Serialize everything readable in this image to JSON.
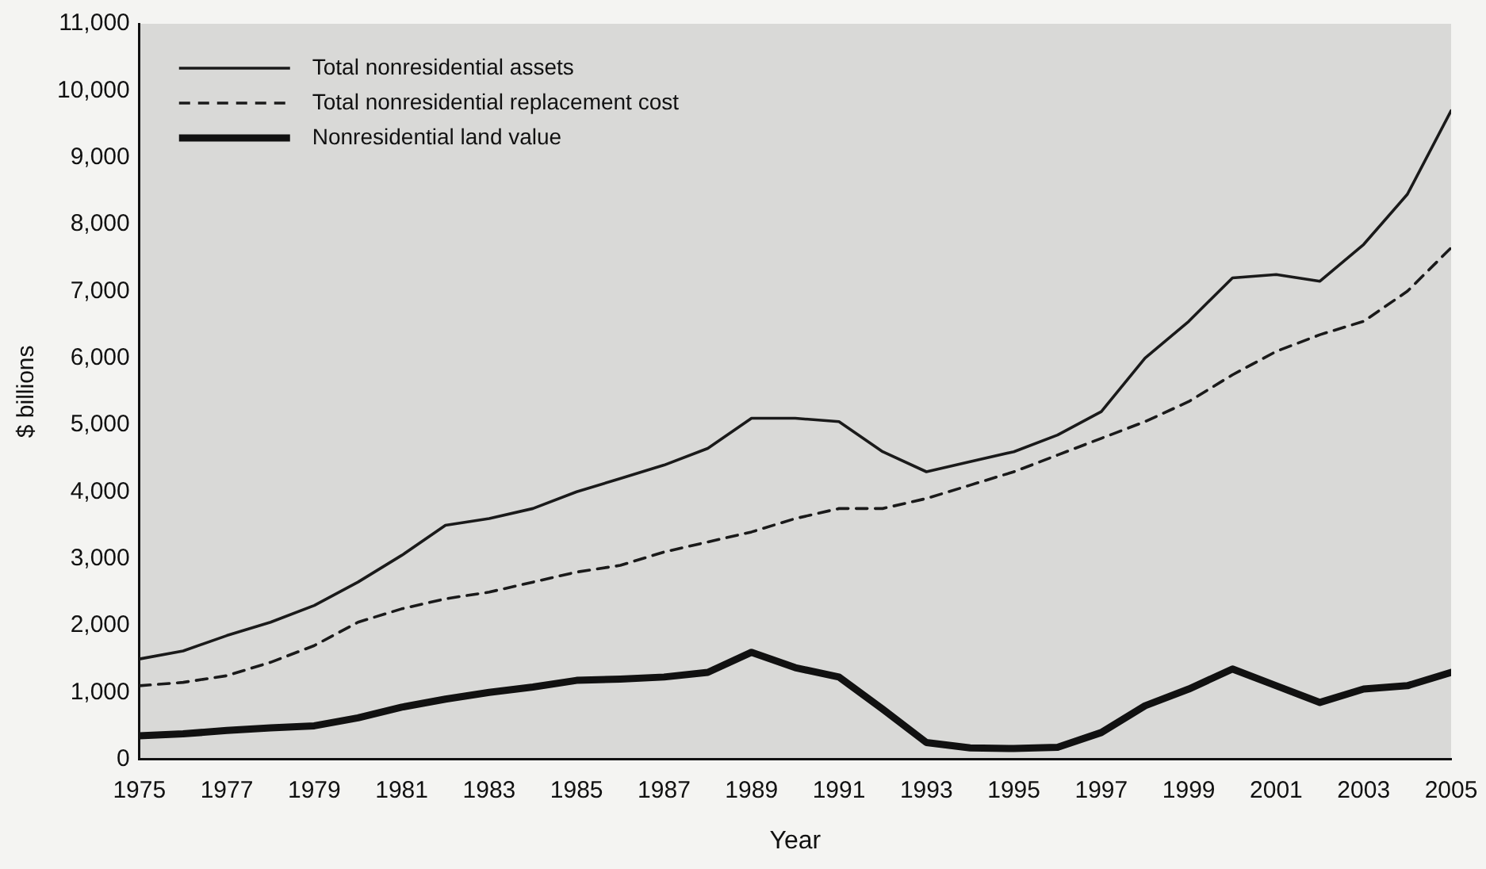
{
  "chart_data": {
    "type": "line",
    "xlabel": "Year",
    "ylabel": "$ billions",
    "x": [
      1975,
      1976,
      1977,
      1978,
      1979,
      1980,
      1981,
      1982,
      1983,
      1984,
      1985,
      1986,
      1987,
      1988,
      1989,
      1990,
      1991,
      1992,
      1993,
      1994,
      1995,
      1996,
      1997,
      1998,
      1999,
      2000,
      2001,
      2002,
      2003,
      2004,
      2005
    ],
    "series": [
      {
        "name": "Total nonresidential assets",
        "color": "#1a1a1a",
        "line_style": "solid",
        "values": [
          1500,
          1620,
          1850,
          2050,
          2300,
          2650,
          3050,
          3500,
          3600,
          3750,
          4000,
          4200,
          4400,
          4650,
          5100,
          5100,
          5050,
          4600,
          4300,
          4450,
          4600,
          4850,
          5200,
          6000,
          6550,
          7200,
          7250,
          7150,
          7700,
          8450,
          9700
        ]
      },
      {
        "name": "Total nonresidential replacement cost",
        "color": "#1a1a1a",
        "line_style": "dashed",
        "values": [
          1100,
          1150,
          1250,
          1450,
          1700,
          2050,
          2250,
          2400,
          2500,
          2650,
          2800,
          2900,
          3100,
          3250,
          3400,
          3600,
          3750,
          3750,
          3900,
          4100,
          4300,
          4550,
          4800,
          5050,
          5350,
          5750,
          6100,
          6350,
          6550,
          7000,
          7650
        ]
      },
      {
        "name": "Nonresidential land value",
        "color": "#111111",
        "line_style": "solid",
        "values": [
          350,
          380,
          430,
          470,
          500,
          620,
          780,
          900,
          1000,
          1080,
          1180,
          1200,
          1230,
          1300,
          1600,
          1370,
          1230,
          750,
          250,
          170,
          160,
          180,
          400,
          800,
          1050,
          1350,
          1100,
          850,
          1050,
          1100,
          1300
        ]
      }
    ],
    "xlim": [
      1975,
      2005
    ],
    "xticks": [
      1975,
      1977,
      1979,
      1981,
      1983,
      1985,
      1987,
      1989,
      1991,
      1993,
      1995,
      1997,
      1999,
      2001,
      2003,
      2005
    ],
    "ylim": [
      0,
      11000
    ],
    "yticks": [
      {
        "value": 0,
        "label": "0"
      },
      {
        "value": 1000,
        "label": "1,000"
      },
      {
        "value": 2000,
        "label": "2,000"
      },
      {
        "value": 3000,
        "label": "3,000"
      },
      {
        "value": 4000,
        "label": "4,000"
      },
      {
        "value": 5000,
        "label": "5,000"
      },
      {
        "value": 6000,
        "label": "6,000"
      },
      {
        "value": 7000,
        "label": "7,000"
      },
      {
        "value": 8000,
        "label": "8,000"
      },
      {
        "value": 9000,
        "label": "9,000"
      },
      {
        "value": 10000,
        "label": "10,000"
      },
      {
        "value": 11000,
        "label": "11,000"
      }
    ],
    "grid": false,
    "legend": "top left",
    "marker": "none"
  }
}
